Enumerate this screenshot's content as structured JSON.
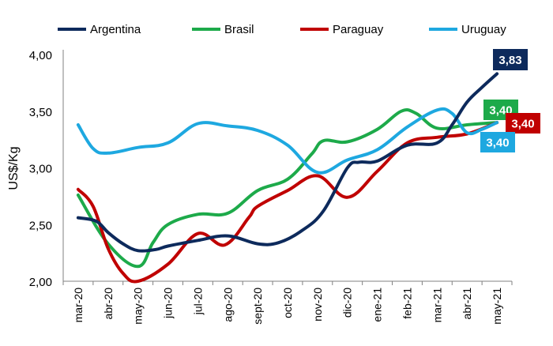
{
  "chart_data": {
    "type": "line",
    "title": "",
    "xlabel": "",
    "ylabel": "US$/Kg",
    "ylim": [
      2.0,
      4.0
    ],
    "y_ticks": [
      "2,00",
      "2,50",
      "3,00",
      "3,50",
      "4,00"
    ],
    "categories": [
      "mar-20",
      "abr-20",
      "may-20",
      "jun-20",
      "jul-20",
      "ago-20",
      "sept-20",
      "oct-20",
      "nov-20",
      "dic-20",
      "ene-21",
      "feb-21",
      "mar-21",
      "abr-21",
      "may-21"
    ],
    "legend_position": "top",
    "series": [
      {
        "name": "Argentina",
        "color": "#0d2a5c",
        "x": [
          0,
          0.6,
          1,
          1.5,
          2,
          2.6,
          3,
          4,
          5,
          6,
          6.7,
          7.5,
          8.2,
          9,
          9.4,
          10,
          11,
          12,
          12.5,
          13,
          13.5,
          14
        ],
        "values": [
          2.56,
          2.53,
          2.43,
          2.33,
          2.27,
          2.28,
          2.31,
          2.36,
          2.4,
          2.33,
          2.34,
          2.45,
          2.62,
          3.0,
          3.05,
          3.06,
          3.2,
          3.22,
          3.38,
          3.58,
          3.71,
          3.83
        ],
        "end_label": "3,83"
      },
      {
        "name": "Brasil",
        "color": "#1daa4a",
        "x": [
          0,
          1,
          2,
          2.5,
          3,
          4,
          5,
          6,
          7,
          7.8,
          8.2,
          9,
          10,
          10.8,
          11.3,
          12,
          13,
          14
        ],
        "values": [
          2.76,
          2.33,
          2.13,
          2.34,
          2.5,
          2.59,
          2.6,
          2.8,
          2.9,
          3.12,
          3.24,
          3.23,
          3.34,
          3.5,
          3.48,
          3.35,
          3.38,
          3.4
        ],
        "end_label": "3,40"
      },
      {
        "name": "Paraguay",
        "color": "#c00000",
        "x": [
          0,
          0.5,
          1,
          1.5,
          2,
          3,
          4,
          4.9,
          5.7,
          6,
          7,
          8,
          9,
          10,
          11,
          12,
          13,
          14
        ],
        "values": [
          2.81,
          2.66,
          2.29,
          2.07,
          2.0,
          2.15,
          2.42,
          2.32,
          2.56,
          2.66,
          2.8,
          2.93,
          2.74,
          2.97,
          3.22,
          3.27,
          3.3,
          3.4
        ],
        "end_label": "3,40"
      },
      {
        "name": "Uruguay",
        "color": "#1ea8e0",
        "x": [
          0,
          0.5,
          1,
          2,
          3,
          4,
          5,
          6,
          7,
          8,
          9,
          10,
          11,
          12,
          12.5,
          13,
          13.5,
          14
        ],
        "values": [
          3.38,
          3.17,
          3.13,
          3.18,
          3.22,
          3.39,
          3.37,
          3.33,
          3.2,
          2.96,
          3.07,
          3.16,
          3.36,
          3.51,
          3.48,
          3.31,
          3.34,
          3.4
        ],
        "end_label": "3,40"
      }
    ]
  }
}
